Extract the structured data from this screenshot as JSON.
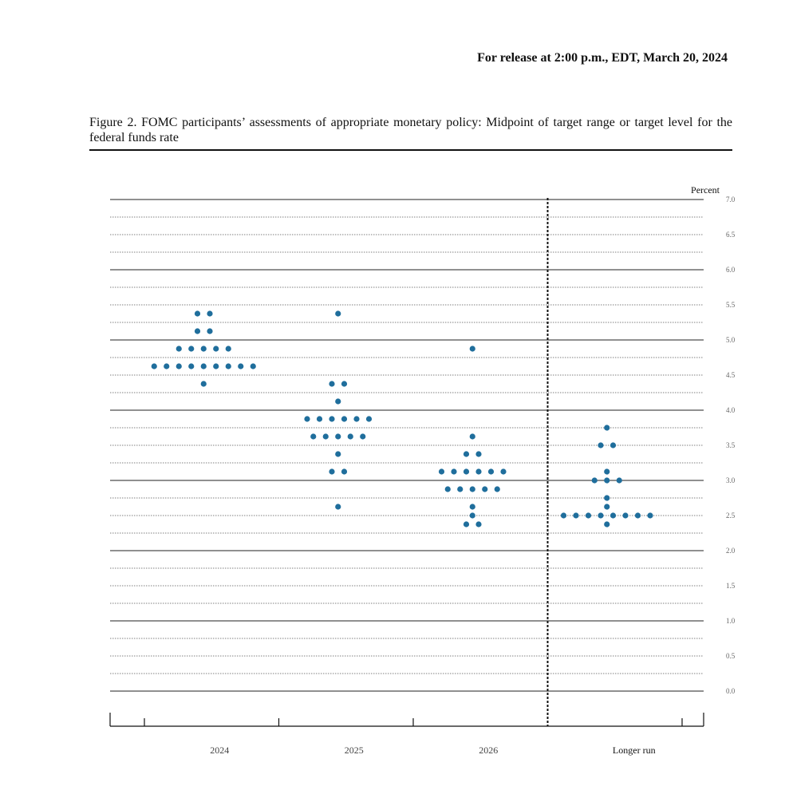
{
  "header": {
    "release": "For release at 2:00 p.m., EDT, March 20, 2024"
  },
  "caption": "Figure 2.  FOMC participants’ assessments of appropriate monetary policy: Midpoint of target range or target level for the federal funds rate",
  "chart_data": {
    "type": "dot",
    "y_label": "Percent",
    "categories": [
      "2024",
      "2025",
      "2026",
      "Longer run"
    ],
    "color": "#1f6e9c",
    "ylim": [
      0,
      7
    ],
    "yticks": [
      {
        "value": 0,
        "label": "0.0"
      },
      {
        "value": 0.5,
        "label": "0.5"
      },
      {
        "value": 1,
        "label": "1.0"
      },
      {
        "value": 1.5,
        "label": "1.5"
      },
      {
        "value": 2,
        "label": "2.0"
      },
      {
        "value": 2.5,
        "label": "2.5"
      },
      {
        "value": 3,
        "label": "3.0"
      },
      {
        "value": 3.5,
        "label": "3.5"
      },
      {
        "value": 4,
        "label": "4.0"
      },
      {
        "value": 4.5,
        "label": "4.5"
      },
      {
        "value": 5,
        "label": "5.0"
      },
      {
        "value": 5.5,
        "label": "5.5"
      },
      {
        "value": 6,
        "label": "6.0"
      },
      {
        "value": 6.5,
        "label": "6.5"
      },
      {
        "value": 7,
        "label": "7.0"
      }
    ],
    "dots": [
      [
        {
          "value": 5.375,
          "count": 2
        },
        {
          "value": 5.125,
          "count": 2
        },
        {
          "value": 4.875,
          "count": 5
        },
        {
          "value": 4.625,
          "count": 9
        },
        {
          "value": 4.375,
          "count": 1
        }
      ],
      [
        {
          "value": 5.375,
          "count": 1
        },
        {
          "value": 4.375,
          "count": 2
        },
        {
          "value": 4.125,
          "count": 1
        },
        {
          "value": 3.875,
          "count": 6
        },
        {
          "value": 3.625,
          "count": 5
        },
        {
          "value": 3.375,
          "count": 1
        },
        {
          "value": 3.125,
          "count": 2
        },
        {
          "value": 2.625,
          "count": 1
        }
      ],
      [
        {
          "value": 4.875,
          "count": 1
        },
        {
          "value": 3.625,
          "count": 1
        },
        {
          "value": 3.375,
          "count": 2
        },
        {
          "value": 3.125,
          "count": 6
        },
        {
          "value": 2.875,
          "count": 5
        },
        {
          "value": 2.625,
          "count": 1
        },
        {
          "value": 2.5,
          "count": 1
        },
        {
          "value": 2.375,
          "count": 2
        }
      ],
      [
        {
          "value": 3.75,
          "count": 1
        },
        {
          "value": 3.5,
          "count": 2
        },
        {
          "value": 3.125,
          "count": 1
        },
        {
          "value": 3,
          "count": 3
        },
        {
          "value": 2.75,
          "count": 1
        },
        {
          "value": 2.625,
          "count": 1
        },
        {
          "value": 2.5,
          "count": 8
        },
        {
          "value": 2.375,
          "count": 1
        }
      ]
    ]
  }
}
